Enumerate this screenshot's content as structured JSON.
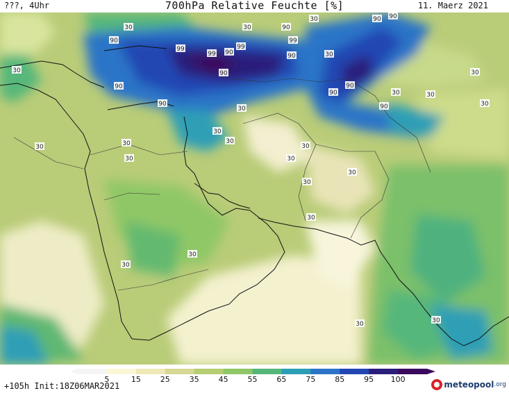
{
  "header": {
    "left_text": "???, 4Uhr",
    "title": "700hPa Relative Feuchte [%]",
    "date": "11. Maerz 2021"
  },
  "footer": {
    "run_info": "+105h  Init:18Z06MAR2021",
    "logo_brand": "meteopool",
    "logo_tld": ".org"
  },
  "colorbar": {
    "labels": [
      "5",
      "15",
      "25",
      "35",
      "45",
      "55",
      "65",
      "75",
      "85",
      "95",
      "100"
    ],
    "colors": [
      "#f5f5f5",
      "#fbf6d6",
      "#eee9b6",
      "#d6d893",
      "#b6cd73",
      "#8fc766",
      "#56b77a",
      "#2d9fb5",
      "#2c74c7",
      "#2446b3",
      "#2b1d7a",
      "#3b0a5e"
    ]
  },
  "map": {
    "contour_labels": [
      "30",
      "30",
      "30",
      "90",
      "99",
      "99",
      "90",
      "90",
      "99",
      "90",
      "99",
      "90",
      "90",
      "30",
      "30",
      "90",
      "90",
      "30",
      "90",
      "90",
      "30",
      "30",
      "30",
      "90",
      "90",
      "30",
      "30",
      "30",
      "30",
      "30",
      "30",
      "30",
      "30",
      "30",
      "30",
      "30",
      "30",
      "30",
      "30",
      "30"
    ]
  }
}
